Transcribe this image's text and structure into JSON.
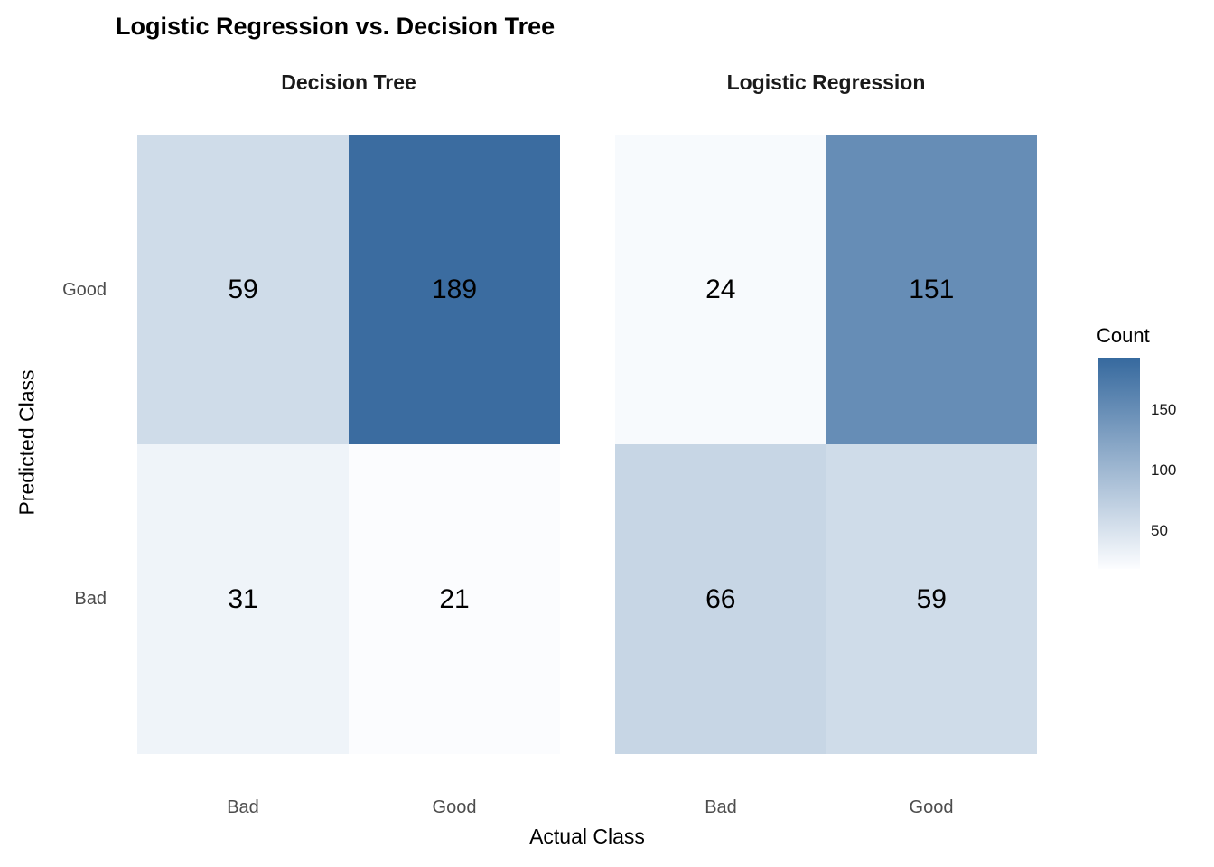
{
  "chart_data": {
    "type": "heatmap",
    "title": "Logistic Regression vs. Decision Tree",
    "xlabel": "Actual Class",
    "ylabel": "Predicted Class",
    "x_categories": [
      "Bad",
      "Good"
    ],
    "y_categories": [
      "Good",
      "Bad"
    ],
    "facets": [
      {
        "name": "Decision Tree",
        "rows": [
          {
            "predicted": "Good",
            "values": [
              59,
              189
            ]
          },
          {
            "predicted": "Bad",
            "values": [
              31,
              21
            ]
          }
        ]
      },
      {
        "name": "Logistic Regression",
        "rows": [
          {
            "predicted": "Good",
            "values": [
              24,
              151
            ]
          },
          {
            "predicted": "Bad",
            "values": [
              66,
              59
            ]
          }
        ]
      }
    ],
    "legend": {
      "title": "Count",
      "ticks": [
        "150",
        "100",
        "50"
      ]
    },
    "color_scale": {
      "low": "#FCFDFF",
      "high": "#36699E",
      "domain": [
        20,
        193
      ]
    },
    "layout": {
      "grid": false,
      "legend_position": "right",
      "facet_layout": "1x2"
    }
  }
}
